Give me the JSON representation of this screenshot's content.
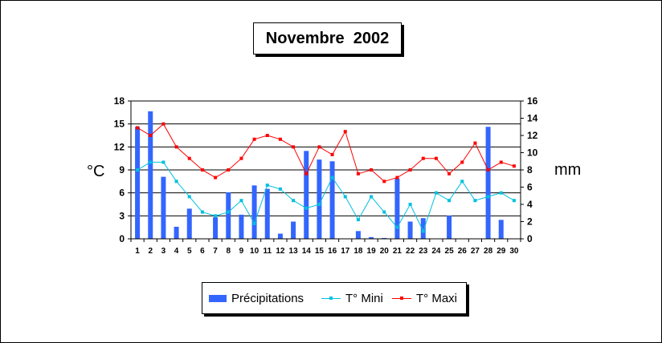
{
  "chart_data": {
    "type": "bar-line-combo",
    "title": "Novembre  2002",
    "categories": [
      "1",
      "2",
      "3",
      "4",
      "5",
      "6",
      "7",
      "8",
      "9",
      "10",
      "11",
      "12",
      "13",
      "14",
      "15",
      "16",
      "17",
      "18",
      "19",
      "20",
      "21",
      "22",
      "23",
      "24",
      "25",
      "26",
      "27",
      "28",
      "29",
      "30"
    ],
    "y_left": {
      "label": "°C",
      "ylim": [
        0,
        18
      ],
      "ticks": [
        "0",
        "3",
        "6",
        "9",
        "12",
        "15",
        "18"
      ]
    },
    "y_right": {
      "label": "mm",
      "ylim": [
        0,
        16
      ],
      "ticks": [
        "0",
        "2",
        "4",
        "6",
        "8",
        "10",
        "12",
        "14",
        "16"
      ]
    },
    "grid": "horizontal",
    "legend_placement": "bottom",
    "series": [
      {
        "name": "Précipitations",
        "kind": "bar",
        "axis": "right",
        "color": "#3366ff",
        "values": [
          13,
          14.8,
          7.2,
          1.4,
          3.5,
          0,
          2.5,
          5.4,
          2.8,
          6.2,
          5.8,
          0.6,
          2,
          10.2,
          9.2,
          9,
          0,
          0.9,
          0.2,
          0.1,
          7,
          2,
          2.4,
          0,
          2.7,
          0,
          0,
          13,
          2.2,
          0
        ]
      },
      {
        "name": "T° Mini",
        "kind": "line",
        "axis": "left",
        "color": "#00c0e0",
        "values": [
          9,
          10,
          10,
          7.5,
          5.5,
          3.5,
          3,
          3.5,
          5,
          2,
          7,
          6.5,
          5,
          4,
          4.5,
          8,
          5.5,
          2.5,
          5.5,
          3.5,
          1.5,
          4.5,
          1,
          6,
          5,
          7.5,
          5,
          5.5,
          6,
          5
        ]
      },
      {
        "name": "T° Maxi",
        "kind": "line",
        "axis": "left",
        "color": "#ff0000",
        "values": [
          14.5,
          13.5,
          15,
          12,
          10.5,
          9,
          8,
          9,
          10.5,
          13,
          13.5,
          13,
          12,
          8.5,
          12,
          11,
          14,
          8.5,
          9,
          7.5,
          8,
          9,
          10.5,
          10.5,
          8.5,
          10,
          12.5,
          9,
          10,
          9.5
        ]
      }
    ]
  },
  "legend": {
    "precip_label": "Précipitations",
    "tmin_label": "T° Mini",
    "tmax_label": "T° Maxi"
  },
  "colors": {
    "bar": "#3366ff",
    "tmin": "#00c0e0",
    "tmax": "#ff0000"
  }
}
